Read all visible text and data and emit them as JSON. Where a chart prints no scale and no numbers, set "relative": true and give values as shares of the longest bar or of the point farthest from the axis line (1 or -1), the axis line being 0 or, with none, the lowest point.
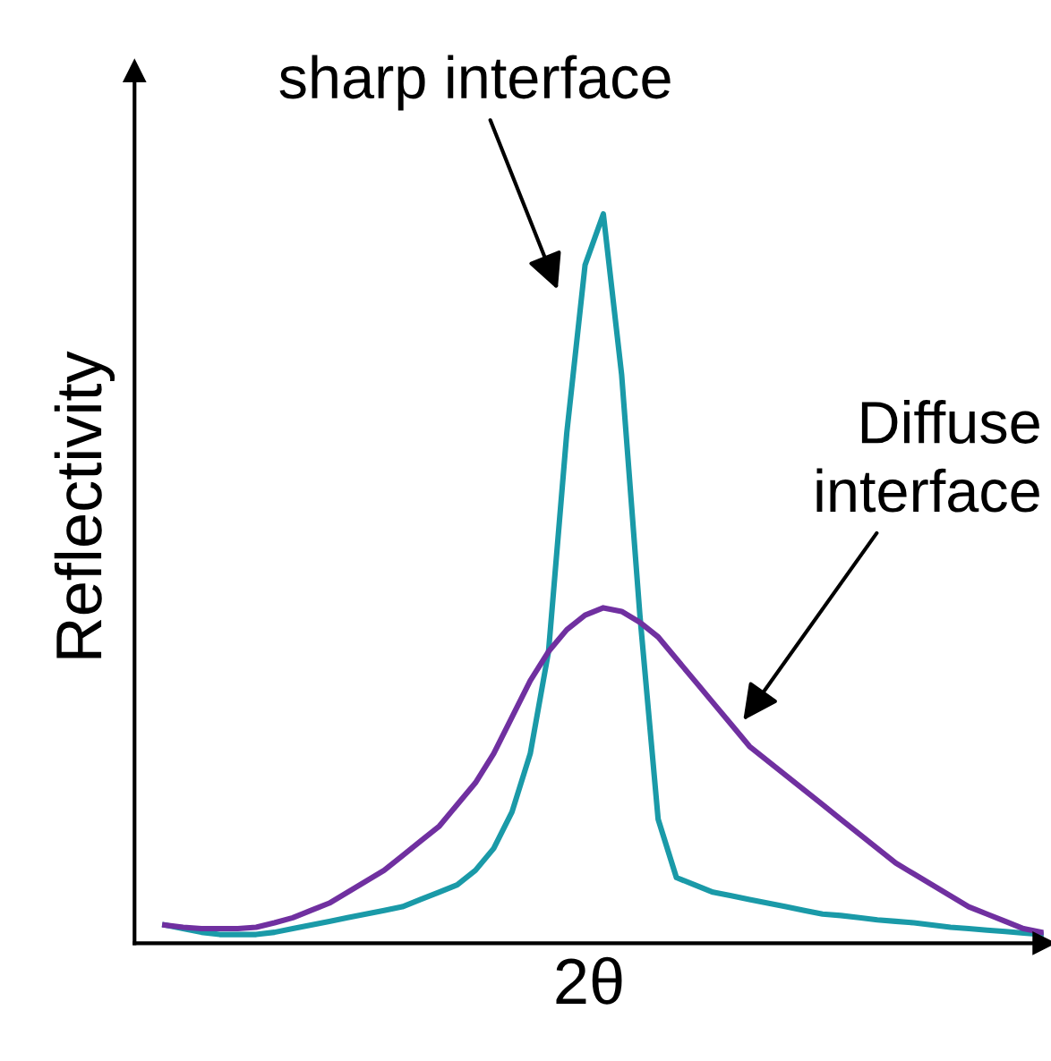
{
  "chart_data": {
    "type": "line",
    "relative": true,
    "xlabel": "2θ",
    "ylabel": "Reflectivity",
    "grid": false,
    "legend": false,
    "marker": "none",
    "line_style": "solid",
    "categories": [
      null,
      null,
      null,
      null,
      null,
      null,
      null,
      null,
      null,
      null,
      null,
      null,
      null,
      null,
      null,
      null,
      null,
      null,
      null,
      null,
      null,
      null,
      null,
      null,
      null,
      null,
      null,
      null,
      null,
      null,
      null,
      null,
      null,
      null,
      null,
      null,
      null,
      null,
      null,
      null,
      null,
      null,
      null,
      null,
      null,
      null,
      null,
      null,
      null
    ],
    "series": [
      {
        "name": "sharp interface",
        "color": "#1a9aa8",
        "values": [
          0.025,
          0.02,
          0.015,
          0.012,
          0.012,
          0.012,
          0.015,
          0.02,
          0.025,
          0.03,
          0.035,
          0.04,
          0.045,
          0.05,
          0.06,
          0.07,
          0.08,
          0.1,
          0.13,
          0.18,
          0.26,
          0.4,
          0.7,
          0.93,
          1.0,
          0.78,
          0.45,
          0.17,
          0.09,
          0.08,
          0.07,
          0.065,
          0.06,
          0.055,
          0.05,
          0.045,
          0.04,
          0.038,
          0.035,
          0.032,
          0.03,
          0.028,
          0.025,
          0.022,
          0.02,
          0.018,
          0.016,
          0.014,
          0.012
        ]
      },
      {
        "name": "Diffuse\ninterface",
        "color": "#7030a0",
        "values": [
          0.025,
          0.022,
          0.02,
          0.02,
          0.02,
          0.022,
          0.028,
          0.035,
          0.045,
          0.055,
          0.07,
          0.085,
          0.1,
          0.12,
          0.14,
          0.16,
          0.19,
          0.22,
          0.26,
          0.31,
          0.36,
          0.4,
          0.43,
          0.45,
          0.46,
          0.455,
          0.44,
          0.42,
          0.39,
          0.36,
          0.33,
          0.3,
          0.27,
          0.25,
          0.23,
          0.21,
          0.19,
          0.17,
          0.15,
          0.13,
          0.11,
          0.095,
          0.08,
          0.065,
          0.05,
          0.04,
          0.03,
          0.02,
          0.015
        ]
      }
    ]
  }
}
